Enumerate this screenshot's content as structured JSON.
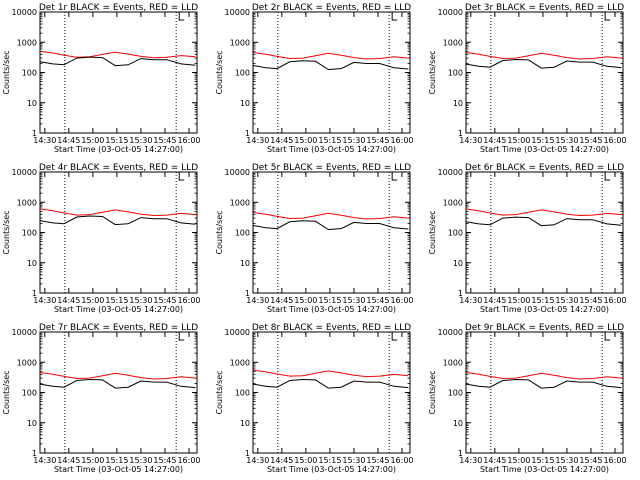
{
  "chart_data": [
    {
      "type": "line",
      "title": "Det 1r BLACK = Events, RED = LLD"
    },
    {
      "type": "line",
      "title": "Det 2r BLACK = Events, RED = LLD"
    },
    {
      "type": "line",
      "title": "Det 3r BLACK = Events, RED = LLD"
    },
    {
      "type": "line",
      "title": "Det 4r BLACK = Events, RED = LLD"
    },
    {
      "type": "line",
      "title": "Det 5r BLACK = Events, RED = LLD"
    },
    {
      "type": "line",
      "title": "Det 6r BLACK = Events, RED = LLD"
    },
    {
      "type": "line",
      "title": "Det 7r BLACK = Events, RED = LLD"
    },
    {
      "type": "line",
      "title": "Det 8r BLACK = Events, RED = LLD"
    },
    {
      "type": "line",
      "title": "Det 9r BLACK = Events, RED = LLD"
    }
  ],
  "shared": {
    "ylabel": "Counts/sec",
    "xlabel": "Start Time (03-Oct-05 14:27:00)",
    "y_scale": "log",
    "ylim": [
      1,
      10000
    ],
    "ytick_labels": [
      "1",
      "10",
      "100",
      "1000",
      "10000"
    ],
    "xtick_labels": [
      "14:30",
      "14:45",
      "15:00",
      "15:15",
      "15:30",
      "15:45",
      "16:00"
    ],
    "xtick_values_min": [
      3,
      18,
      33,
      48,
      63,
      78,
      93
    ],
    "xlim_min": [
      0,
      98
    ],
    "markers_min": [
      15.5,
      85
    ],
    "series_colors": {
      "events": "#000000",
      "lld": "#ff0000"
    },
    "lld_base": [
      460,
      400,
      340,
      290,
      300,
      360,
      430,
      370,
      310,
      280,
      290,
      330,
      300
    ],
    "events_base": [
      190,
      160,
      150,
      250,
      270,
      260,
      140,
      150,
      240,
      220,
      220,
      160,
      145
    ],
    "x": [
      0,
      8,
      15,
      23,
      31,
      39,
      47,
      55,
      63,
      71,
      79,
      88,
      97
    ]
  },
  "panel_scale": [
    {
      "lld": 1.1,
      "ev": 1.2
    },
    {
      "lld": 1.0,
      "ev": 0.9
    },
    {
      "lld": 1.0,
      "ev": 1.0
    },
    {
      "lld": 1.3,
      "ev": 1.3
    },
    {
      "lld": 1.0,
      "ev": 0.9
    },
    {
      "lld": 1.3,
      "ev": 1.2
    },
    {
      "lld": 1.0,
      "ev": 1.0
    },
    {
      "lld": 1.2,
      "ev": 1.0
    },
    {
      "lld": 1.0,
      "ev": 1.0
    }
  ]
}
